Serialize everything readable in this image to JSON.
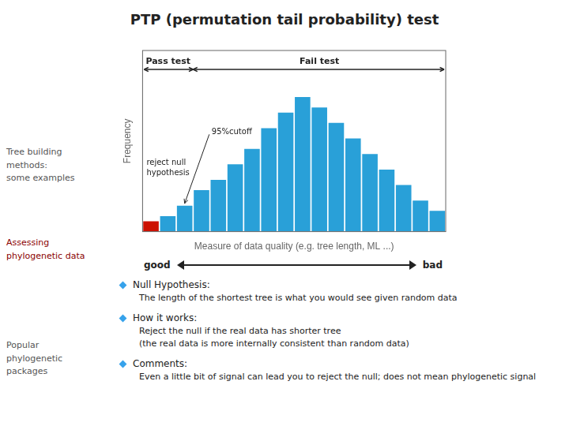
{
  "chart_data": {
    "type": "bar",
    "title": "PTP (permutation tail probability) test",
    "x_label": "Measure of data quality (e.g. tree length, ML ...)",
    "y_label": "Frequency",
    "categories": [
      null,
      null,
      null,
      null,
      null,
      null,
      null,
      null,
      null,
      null,
      null,
      null,
      null,
      null,
      null,
      null,
      null,
      null
    ],
    "values": [
      2,
      3,
      5,
      8,
      10,
      13,
      16,
      20,
      23,
      26,
      24,
      21,
      18,
      15,
      12,
      9,
      6,
      4
    ],
    "colors": [
      "#cc1100",
      "#29a0d8",
      "#29a0d8",
      "#29a0d8",
      "#29a0d8",
      "#29a0d8",
      "#29a0d8",
      "#29a0d8",
      "#29a0d8",
      "#29a0d8",
      "#29a0d8",
      "#29a0d8",
      "#29a0d8",
      "#29a0d8",
      "#29a0d8",
      "#29a0d8",
      "#29a0d8",
      "#29a0d8"
    ],
    "ylim": [
      0,
      35
    ],
    "yticks": [],
    "tick_labels": false,
    "grid": false,
    "annotations": {
      "cutoff": {
        "text": "95%cutoff",
        "index": 2
      },
      "pass": "Pass test",
      "fail": "Fail test",
      "reject": "reject null\nhypothesis",
      "good": "good",
      "bad": "bad"
    },
    "sidebar": [
      {
        "text": "Tree building\nmethods:\nsome examples",
        "color": "#555555"
      },
      {
        "text": "Assessing\nphylogenetic data",
        "color": "#8b0000"
      },
      {
        "text": "Popular\nphylogenetic\npackages",
        "color": "#555555"
      }
    ],
    "bullets": [
      {
        "header": "Null Hypothesis:",
        "body": "The length of the shortest tree is what you would see given random data"
      },
      {
        "header": "How it works:",
        "body": "Reject the null if the real data has shorter tree\n(the real data is more internally consistent than random data)"
      },
      {
        "header": "Comments:",
        "body": "Even a little bit of signal can lead you to reject the null; does not mean phylogenetic signal"
      }
    ]
  }
}
